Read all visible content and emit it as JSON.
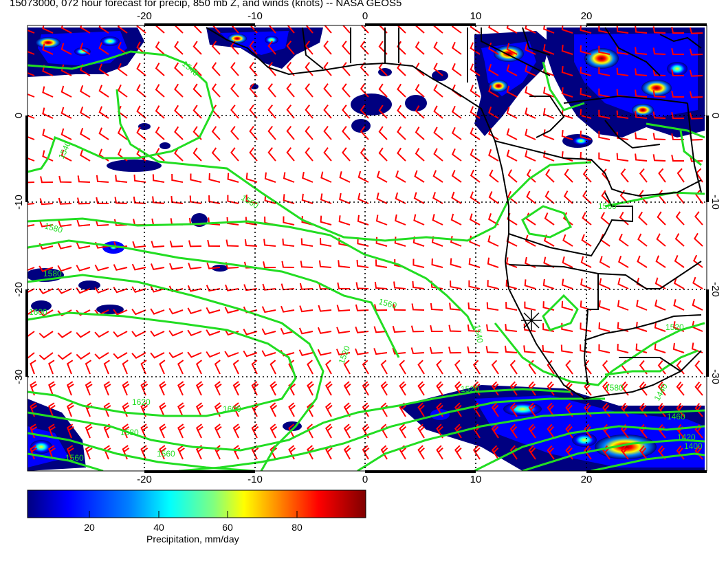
{
  "title": "15073000, 072 hour forecast for precip, 850 mb Z, and winds (knots) -- NASA GEOS5",
  "map": {
    "lon_range": [
      -30,
      30
    ],
    "lat_range": [
      -40,
      10
    ],
    "lon_ticks": [
      "-20",
      "-10",
      "0",
      "10",
      "20"
    ],
    "lat_ticks": [
      "0",
      "-10",
      "-20",
      "-30"
    ],
    "grid": "dotted",
    "contour_color": "#22dd22",
    "barb_color": "#ff0000",
    "coast_color": "#000000",
    "contour_labels": [
      "1540",
      "1540",
      "1560",
      "1580",
      "1580",
      "1600",
      "1560",
      "1540",
      "1520",
      "1560",
      "1580",
      "1620",
      "1600",
      "1580",
      "1560",
      "1520",
      "1520",
      "1460",
      "1440",
      "1420",
      "1400",
      "1560"
    ],
    "marker": "star-marker"
  },
  "colorbar": {
    "label": "Precipitation, mm/day",
    "ticks": [
      "20",
      "40",
      "60",
      "80"
    ],
    "tick_values": [
      20,
      40,
      60,
      80
    ],
    "range": [
      0,
      98
    ],
    "colors": [
      "#000080",
      "#0000ff",
      "#0080ff",
      "#00ffff",
      "#80ff80",
      "#ffff00",
      "#ff8000",
      "#ff0000",
      "#800000"
    ]
  }
}
